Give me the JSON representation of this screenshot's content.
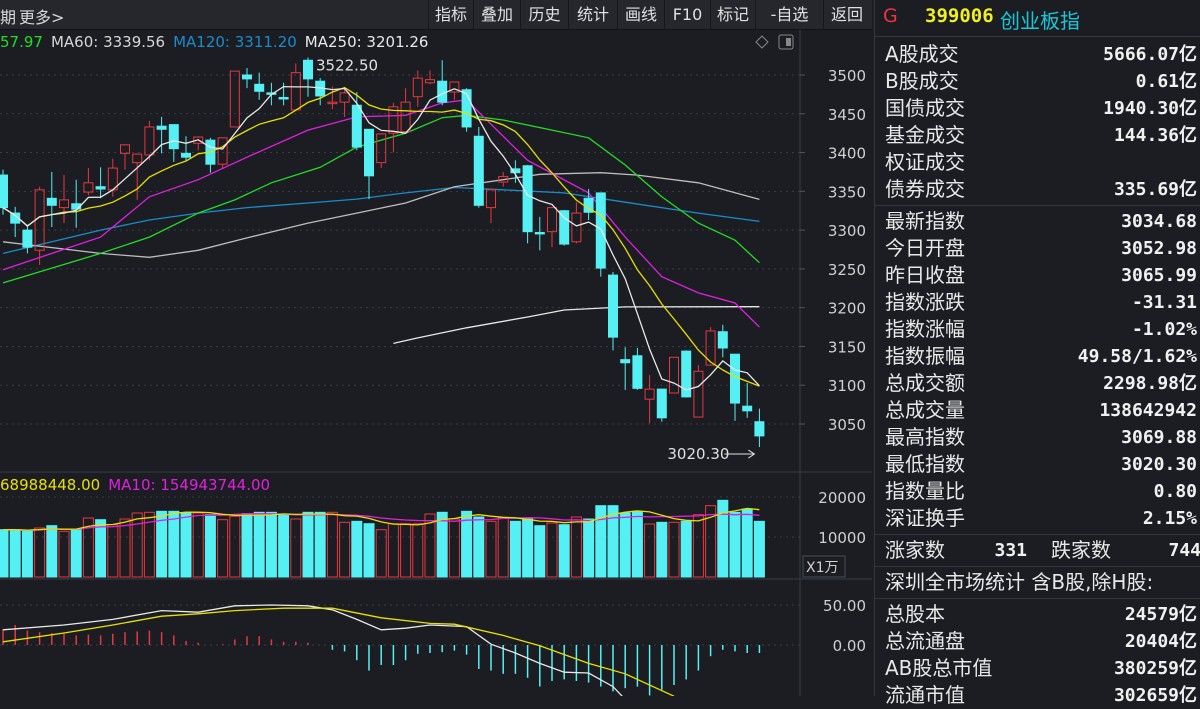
{
  "topbar": {
    "period_fragment": "期",
    "more": "更多>",
    "buttons": [
      "指标",
      "叠加",
      "历史",
      "统计",
      "画线",
      "F10",
      "标记",
      "-自选",
      "返回"
    ]
  },
  "colors": {
    "background": "#1b1d23",
    "up": "#e8373e",
    "down": "#54f0f4",
    "ma5": "#e8e8e8",
    "ma10": "#e8e000",
    "ma20": "#e020e0",
    "ma30": "#22dd22",
    "ma60": "#bdbdbd",
    "ma120": "#1a8ccc",
    "ma250": "#e8e8e8"
  },
  "legend": {
    "ma_fragment": "57.97",
    "ma60": "MA60: 3339.56",
    "ma120": "MA120: 3311.20",
    "ma250": "MA250: 3201.26",
    "vol_ma5_fragment": "68988448.00",
    "vol_ma10": "MA10: 154943744.00"
  },
  "chart_icons": [
    "diamond-icon",
    "panel-toggle-icon"
  ],
  "annotations": {
    "high": "3522.50",
    "low": "3020.30"
  },
  "axis": {
    "price_ticks": [
      "3500",
      "3450",
      "3400",
      "3350",
      "3300",
      "3250",
      "3200",
      "3150",
      "3100",
      "3050"
    ],
    "volume_ticks": [
      "20000",
      "10000"
    ],
    "volume_unit": "X1万",
    "macd_ticks": [
      "50.00",
      "0.00"
    ]
  },
  "chart_data": {
    "type": "candlestick",
    "price_range": [
      3000,
      3540
    ],
    "grid": true,
    "ohlc": [
      [
        3371,
        3378,
        3320,
        3329
      ],
      [
        3322,
        3330,
        3291,
        3309
      ],
      [
        3300,
        3307,
        3270,
        3278
      ],
      [
        3274,
        3356,
        3255,
        3352
      ],
      [
        3341,
        3375,
        3304,
        3332
      ],
      [
        3329,
        3371,
        3309,
        3339
      ],
      [
        3334,
        3365,
        3303,
        3327
      ],
      [
        3349,
        3380,
        3345,
        3361
      ],
      [
        3356,
        3381,
        3341,
        3353
      ],
      [
        3352,
        3392,
        3343,
        3380
      ],
      [
        3399,
        3410,
        3378,
        3410
      ],
      [
        3387,
        3399,
        3339,
        3398
      ],
      [
        3397,
        3441,
        3390,
        3433
      ],
      [
        3434,
        3446,
        3399,
        3430
      ],
      [
        3436,
        3436,
        3388,
        3405
      ],
      [
        3399,
        3421,
        3390,
        3394
      ],
      [
        3412,
        3421,
        3403,
        3420
      ],
      [
        3416,
        3419,
        3374,
        3385
      ],
      [
        3385,
        3419,
        3380,
        3419
      ],
      [
        3433,
        3505,
        3433,
        3505
      ],
      [
        3500,
        3509,
        3483,
        3495
      ],
      [
        3488,
        3503,
        3468,
        3479
      ],
      [
        3477,
        3490,
        3461,
        3476
      ],
      [
        3471,
        3490,
        3461,
        3470
      ],
      [
        3455,
        3515,
        3455,
        3503
      ],
      [
        3519,
        3522.5,
        3472,
        3495
      ],
      [
        3492,
        3496,
        3461,
        3473
      ],
      [
        3464,
        3485,
        3456,
        3465
      ],
      [
        3465,
        3483,
        3446,
        3477
      ],
      [
        3461,
        3478,
        3403,
        3407
      ],
      [
        3430,
        3430,
        3340,
        3370
      ],
      [
        3387,
        3425,
        3380,
        3424
      ],
      [
        3425,
        3464,
        3400,
        3459
      ],
      [
        3427,
        3483,
        3425,
        3465
      ],
      [
        3472,
        3506,
        3459,
        3496
      ],
      [
        3490,
        3506,
        3488,
        3494
      ],
      [
        3492,
        3519,
        3461,
        3465
      ],
      [
        3478,
        3491,
        3468,
        3491
      ],
      [
        3481,
        3483,
        3427,
        3433
      ],
      [
        3421,
        3433,
        3329,
        3332
      ],
      [
        3329,
        3352,
        3309,
        3352
      ],
      [
        3362,
        3375,
        3356,
        3369
      ],
      [
        3379,
        3390,
        3361,
        3374
      ],
      [
        3383,
        3384,
        3283,
        3298
      ],
      [
        3297,
        3317,
        3274,
        3296
      ],
      [
        3298,
        3329,
        3278,
        3329
      ],
      [
        3325,
        3326,
        3280,
        3282
      ],
      [
        3285,
        3336,
        3283,
        3322
      ],
      [
        3341,
        3353,
        3313,
        3323
      ],
      [
        3348,
        3348,
        3240,
        3251
      ],
      [
        3242,
        3246,
        3145,
        3162
      ],
      [
        3133,
        3149,
        3094,
        3129
      ],
      [
        3138,
        3148,
        3094,
        3096
      ],
      [
        3082,
        3113,
        3051,
        3095
      ],
      [
        3095,
        3095,
        3053,
        3058
      ],
      [
        3090,
        3136,
        3090,
        3136
      ],
      [
        3144,
        3145,
        3084,
        3085
      ],
      [
        3059,
        3126,
        3059,
        3118
      ],
      [
        3126,
        3175,
        3126,
        3170
      ],
      [
        3169,
        3178,
        3136,
        3148
      ],
      [
        3140,
        3140,
        3054,
        3077
      ],
      [
        3073,
        3103,
        3058,
        3067
      ],
      [
        3052.98,
        3069.88,
        3020.3,
        3034.68
      ]
    ],
    "ma_lines": {
      "ma20": [
        [
          0,
          3249
        ],
        [
          8,
          3291
        ],
        [
          12,
          3343
        ],
        [
          16,
          3365
        ],
        [
          20,
          3394
        ],
        [
          25,
          3429
        ],
        [
          29,
          3446
        ],
        [
          33,
          3448
        ],
        [
          36,
          3464
        ],
        [
          38,
          3468
        ],
        [
          39,
          3452
        ],
        [
          43,
          3390
        ],
        [
          48,
          3348
        ],
        [
          51,
          3291
        ],
        [
          54,
          3240
        ],
        [
          57,
          3219
        ],
        [
          60,
          3206
        ],
        [
          62,
          3175
        ]
      ],
      "ma30": [
        [
          0,
          3232
        ],
        [
          8,
          3270
        ],
        [
          12,
          3291
        ],
        [
          16,
          3322
        ],
        [
          19,
          3339
        ],
        [
          22,
          3361
        ],
        [
          26,
          3381
        ],
        [
          29,
          3407
        ],
        [
          33,
          3425
        ],
        [
          36,
          3445
        ],
        [
          38,
          3448
        ],
        [
          41,
          3442
        ],
        [
          45,
          3429
        ],
        [
          48,
          3419
        ],
        [
          51,
          3384
        ],
        [
          54,
          3343
        ],
        [
          57,
          3309
        ],
        [
          60,
          3287
        ],
        [
          62,
          3258
        ]
      ],
      "ma60": [
        [
          0,
          3285
        ],
        [
          8,
          3270
        ],
        [
          12,
          3265
        ],
        [
          16,
          3274
        ],
        [
          20,
          3290
        ],
        [
          25,
          3309
        ],
        [
          29,
          3322
        ],
        [
          33,
          3335
        ],
        [
          37,
          3356
        ],
        [
          41,
          3365
        ],
        [
          44,
          3372
        ],
        [
          49,
          3374
        ],
        [
          52,
          3371
        ],
        [
          57,
          3361
        ],
        [
          62,
          3339.56
        ]
      ],
      "ma120": [
        [
          0,
          3270
        ],
        [
          8,
          3300
        ],
        [
          12,
          3313
        ],
        [
          16,
          3322
        ],
        [
          20,
          3329
        ],
        [
          25,
          3335
        ],
        [
          29,
          3340
        ],
        [
          33,
          3348
        ],
        [
          37,
          3355
        ],
        [
          41,
          3352
        ],
        [
          46,
          3348
        ],
        [
          51,
          3336
        ],
        [
          57,
          3322
        ],
        [
          62,
          3311.2
        ]
      ],
      "ma250": [
        [
          32,
          3154
        ],
        [
          34,
          3161
        ],
        [
          38,
          3174
        ],
        [
          43,
          3188
        ],
        [
          46,
          3197
        ],
        [
          51,
          3201
        ],
        [
          62,
          3201.26
        ]
      ]
    },
    "volume_wan": [
      11830,
      11830,
      11420,
      12250,
      12830,
      11420,
      12000,
      14750,
      14330,
      13080,
      14500,
      16000,
      16170,
      16420,
      16420,
      16000,
      16000,
      15580,
      14330,
      15170,
      15830,
      16170,
      16170,
      15580,
      14500,
      16170,
      16170,
      16170,
      13670,
      13920,
      13330,
      11830,
      13330,
      13330,
      13330,
      15750,
      16170,
      14500,
      16420,
      15000,
      13920,
      14750,
      13920,
      14500,
      12830,
      13500,
      13080,
      15000,
      14500,
      17830,
      17830,
      16000,
      16420,
      13250,
      13670,
      13670,
      13920,
      15580,
      17830,
      19170,
      16170,
      17000,
      13920
    ],
    "volume_range": [
      0,
      24000
    ],
    "macd": {
      "hist": [
        20,
        25,
        18,
        16,
        15,
        14,
        12,
        13,
        12,
        14,
        16,
        17,
        18,
        16,
        12,
        5,
        3,
        0,
        1,
        7,
        11,
        11,
        7,
        4,
        4,
        3,
        0,
        -6,
        -8,
        -19,
        -32,
        -25,
        -25,
        -19,
        -11,
        -10,
        -9,
        -7,
        -12,
        -30,
        -32,
        -36,
        -36,
        -41,
        -52,
        -45,
        -43,
        -45,
        -47,
        -52,
        -58,
        -54,
        -52,
        -63,
        -56,
        -50,
        -43,
        -32,
        -14,
        -6,
        -8,
        -10,
        -10
      ],
      "dif": [
        [
          0,
          19
        ],
        [
          5,
          25
        ],
        [
          9,
          32
        ],
        [
          13,
          43
        ],
        [
          16,
          41
        ],
        [
          19,
          49
        ],
        [
          22,
          50
        ],
        [
          25,
          49
        ],
        [
          27,
          44
        ],
        [
          29,
          32
        ],
        [
          31,
          19
        ],
        [
          33,
          21
        ],
        [
          35,
          25
        ],
        [
          38,
          23
        ],
        [
          40,
          1
        ],
        [
          42,
          -10
        ],
        [
          44,
          -23
        ],
        [
          46,
          -34
        ],
        [
          48,
          -35
        ],
        [
          50,
          -52
        ],
        [
          51,
          -68
        ]
      ],
      "dea": [
        [
          0,
          4
        ],
        [
          5,
          15
        ],
        [
          9,
          25
        ],
        [
          13,
          36
        ],
        [
          16,
          39
        ],
        [
          19,
          43
        ],
        [
          23,
          46
        ],
        [
          27,
          46
        ],
        [
          31,
          34
        ],
        [
          35,
          27
        ],
        [
          37,
          26
        ],
        [
          41,
          12
        ],
        [
          44,
          -1
        ],
        [
          48,
          -23
        ],
        [
          51,
          -36
        ],
        [
          55,
          -64
        ]
      ]
    }
  },
  "panel": {
    "market_flag": "G",
    "code": "399006",
    "name": "创业板指",
    "turnover_rows": [
      {
        "label": "A股成交",
        "value": "5666.07亿",
        "tone": "white"
      },
      {
        "label": "B股成交",
        "value": "0.61亿",
        "tone": "white"
      },
      {
        "label": "国债成交",
        "value": "1940.30亿",
        "tone": "white"
      },
      {
        "label": "基金成交",
        "value": "144.36亿",
        "tone": "white"
      },
      {
        "label": "权证成交",
        "value": "",
        "tone": "white"
      },
      {
        "label": "债券成交",
        "value": "335.69亿",
        "tone": "white"
      }
    ],
    "index_rows": [
      {
        "label": "最新指数",
        "value": "3034.68",
        "tone": "green"
      },
      {
        "label": "今日开盘",
        "value": "3052.98",
        "tone": "green"
      },
      {
        "label": "昨日收盘",
        "value": "3065.99",
        "tone": "white"
      },
      {
        "label": "指数涨跌",
        "value": "-31.31",
        "tone": "green"
      },
      {
        "label": "指数涨幅",
        "value": "-1.02%",
        "tone": "green"
      },
      {
        "label": "指数振幅",
        "value": "49.58/1.62%",
        "tone": "white"
      },
      {
        "label": "总成交额",
        "value": "2298.98亿",
        "tone": "white"
      },
      {
        "label": "总成交量",
        "value": "138642942",
        "tone": "white"
      },
      {
        "label": "最高指数",
        "value": "3069.88",
        "tone": "red"
      },
      {
        "label": "最低指数",
        "value": "3020.30",
        "tone": "green"
      },
      {
        "label": "指数量比",
        "value": "0.80",
        "tone": "green"
      },
      {
        "label": "深证换手",
        "value": "2.15%",
        "tone": "white"
      }
    ],
    "advance_label": "涨家数",
    "advance_value": "331",
    "decline_label": "跌家数",
    "decline_value": "744",
    "market_stats_title": "深圳全市场统计 含B股,除H股:",
    "market_rows": [
      {
        "label": "总股本",
        "value": "24579亿",
        "tone": "white"
      },
      {
        "label": "总流通盘",
        "value": "20404亿",
        "tone": "white"
      },
      {
        "label": "AB股总市值",
        "value": "380259亿",
        "tone": "white"
      },
      {
        "label": "流通市值",
        "value": "302659亿",
        "tone": "white"
      }
    ]
  }
}
